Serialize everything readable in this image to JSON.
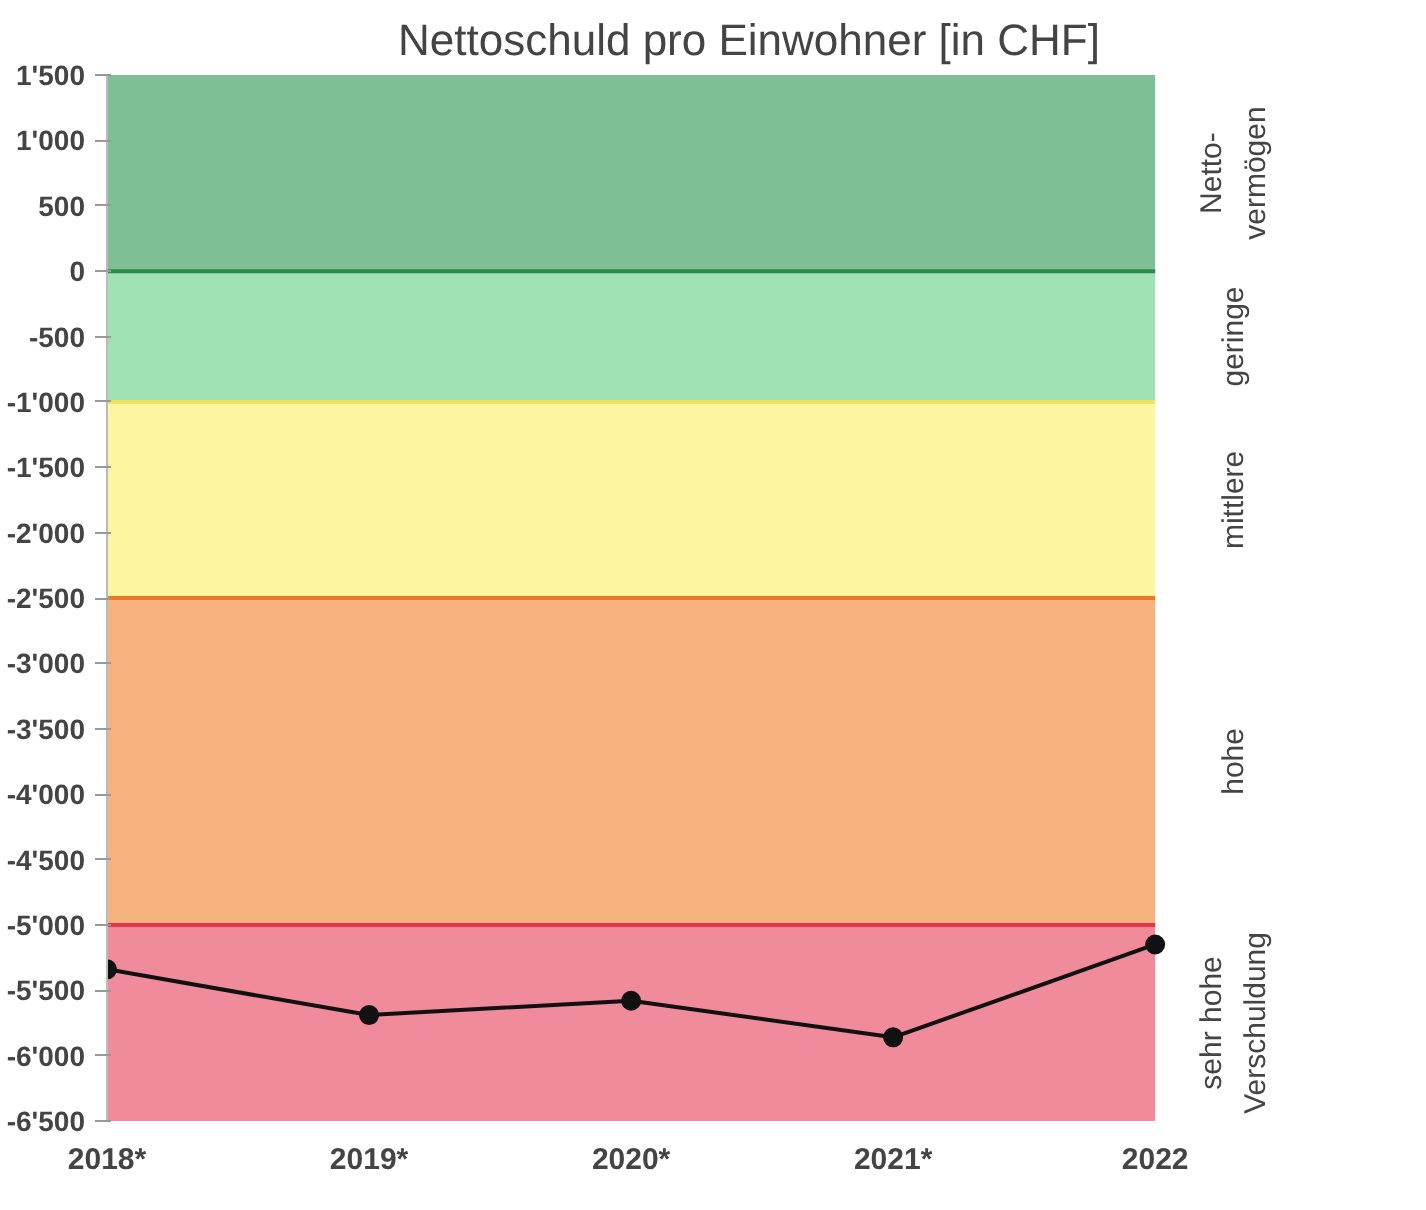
{
  "chart_data": {
    "type": "line",
    "title": "Nettoschuld pro Einwohner [in CHF]",
    "categories": [
      "2018*",
      "2019*",
      "2020*",
      "2021*",
      "2022"
    ],
    "series": [
      {
        "color": "#111111",
        "values": [
          -5340,
          -5690,
          -5580,
          -5860,
          -5150
        ]
      }
    ],
    "marker": "circle",
    "line_style": "solid",
    "grid": false,
    "ylim": [
      -6500,
      1500
    ],
    "yticks": [
      {
        "value": 1500,
        "label": "1'500"
      },
      {
        "value": 1000,
        "label": "1'000"
      },
      500,
      0,
      {
        "value": -500,
        "label": "-500"
      },
      {
        "value": -1000,
        "label": "-1'000"
      },
      {
        "value": -1500,
        "label": "-1'500"
      },
      {
        "value": -2000,
        "label": "-2'000"
      },
      {
        "value": -2500,
        "label": "-2'500"
      },
      {
        "value": -3000,
        "label": "-3'000"
      },
      {
        "value": -3500,
        "label": "-3'500"
      },
      {
        "value": -4000,
        "label": "-4'000"
      },
      {
        "value": -4500,
        "label": "-4'500"
      },
      {
        "value": -5000,
        "label": "-5'000"
      },
      {
        "value": -5500,
        "label": "-5'500"
      },
      {
        "value": -6000,
        "label": "-6'000"
      },
      {
        "value": -6500,
        "label": "-6'500"
      }
    ],
    "bands": [
      {
        "axis": "y",
        "from": 0,
        "to": 1500,
        "label": "Netto-\nvermögen",
        "color": "#7fbf95"
      },
      {
        "axis": "y",
        "from": -1000,
        "to": 0,
        "label": "geringe",
        "color": "#a0e2b4"
      },
      {
        "axis": "y",
        "from": -2500,
        "to": -1000,
        "label": "mittlere",
        "color": "#fdf5a0"
      },
      {
        "axis": "y",
        "from": -5000,
        "to": -2500,
        "label": "hohe",
        "color": "#f6b37f"
      },
      {
        "axis": "y",
        "from": -6500,
        "to": -5000,
        "label": "sehr hohe\nVerschuldung",
        "color": "#f08b9c"
      }
    ],
    "ref_lines": [
      {
        "axis": "y",
        "value": 0,
        "color": "#2e8b4a"
      },
      {
        "axis": "y",
        "value": -1000,
        "color": "#f2e060"
      },
      {
        "axis": "y",
        "value": -2500,
        "color": "#e8782a"
      },
      {
        "axis": "y",
        "value": -5000,
        "color": "#e8344a"
      }
    ]
  }
}
